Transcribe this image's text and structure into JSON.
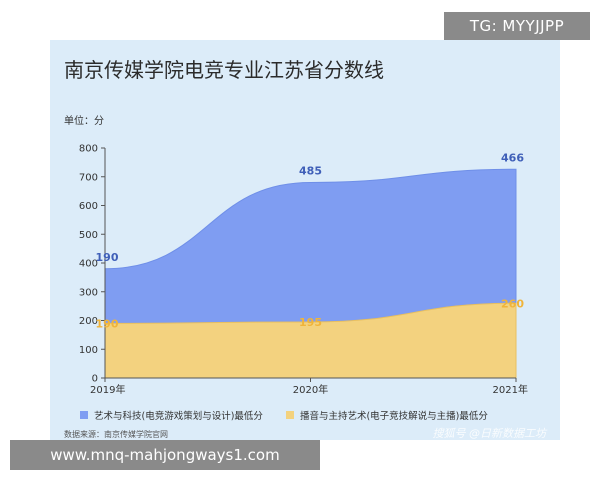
{
  "watermark_top": "TG: MYYJJPP",
  "watermark_bottom": "www.mnq-mahjongways1.com",
  "watermark_right": "搜狐号 @日新数据工坊",
  "source": "数据来源：南京传媒学院官网",
  "chart_data": {
    "type": "area",
    "title": "南京传媒学院电竞专业江苏省分数线",
    "unit_label": "单位：分",
    "categories": [
      "2019年",
      "2020年",
      "2021年"
    ],
    "ylim": [
      0,
      800
    ],
    "yticks": [
      "0",
      "100",
      "200",
      "300",
      "400",
      "500",
      "600",
      "700",
      "800"
    ],
    "grid": false,
    "legend_position": "bottom",
    "series": [
      {
        "name": "艺术与科技(电竞游戏策划与设计)最低分",
        "values": [
          190,
          485,
          466
        ],
        "color": "#7f9df2",
        "label_color": "#3f5fb8"
      },
      {
        "name": "播音与主持艺术(电子竞技解说与主播)最低分",
        "values": [
          190,
          195,
          260
        ],
        "color": "#f3d27f",
        "label_color": "#f0b43a"
      }
    ],
    "stacked": true
  }
}
